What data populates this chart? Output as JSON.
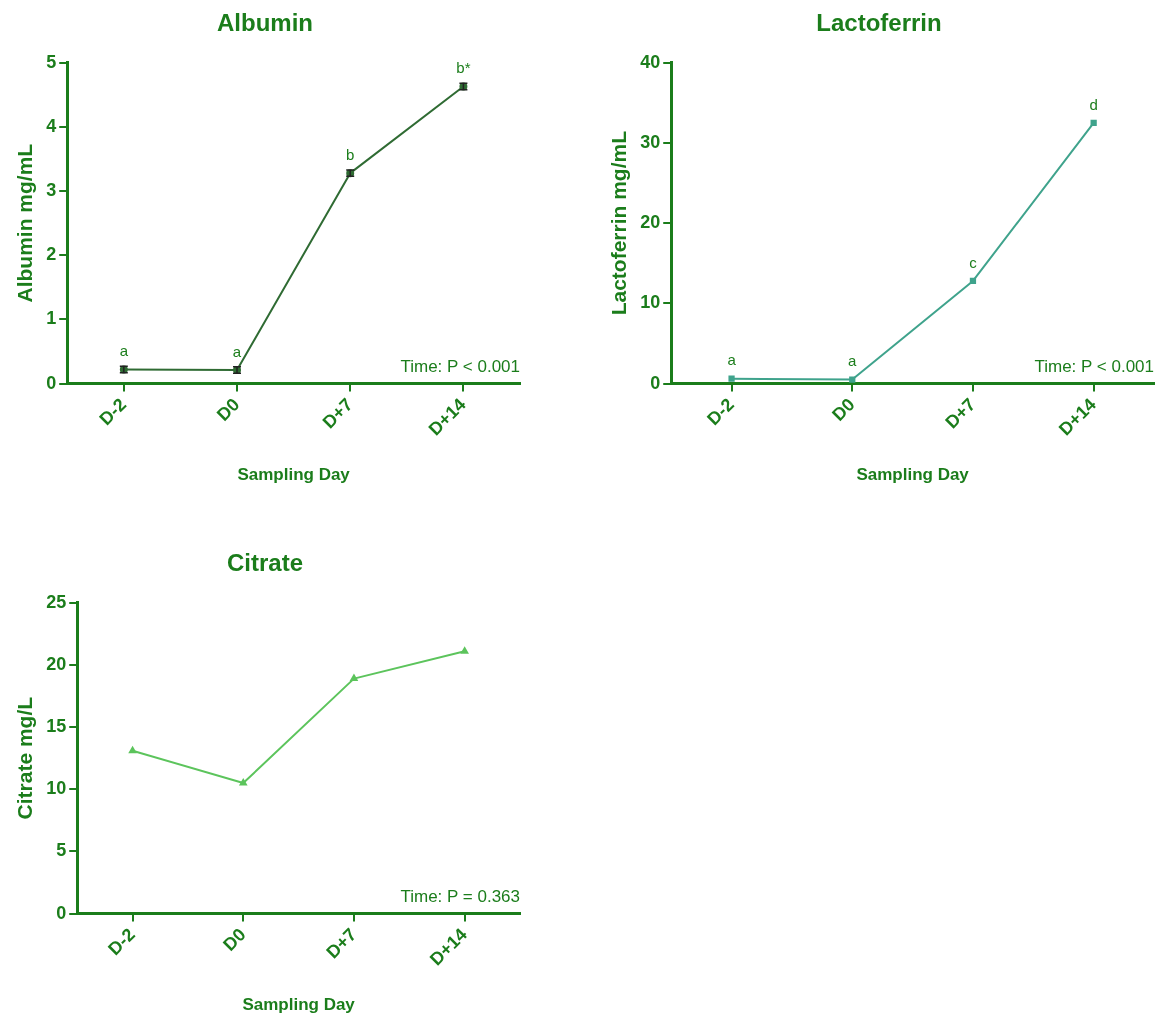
{
  "chart_data": [
    {
      "type": "line",
      "title": "Albumin",
      "xlabel": "Sampling Day",
      "ylabel": "Albumin mg/mL",
      "categories": [
        "D-2",
        "D0",
        "D+7",
        "D+14"
      ],
      "ylim": [
        0,
        5
      ],
      "yticks": [
        0,
        1,
        2,
        3,
        4,
        5
      ],
      "grid": false,
      "legend": false,
      "marker": "circle",
      "series": [
        {
          "color": "#2f6b33",
          "values": [
            0.22,
            0.21,
            3.28,
            4.63
          ],
          "errors": [
            0.05,
            0.05,
            0.05,
            0.05
          ]
        }
      ],
      "annotations": [
        {
          "text": "a",
          "x": "D-2",
          "y": 0.22
        },
        {
          "text": "a",
          "x": "D0",
          "y": 0.21
        },
        {
          "text": "b",
          "x": "D+7",
          "y": 3.28
        },
        {
          "text": "b*",
          "x": "D+14",
          "y": 4.63
        },
        "Time: P < 0.001"
      ]
    },
    {
      "type": "line",
      "title": "Lactoferrin",
      "xlabel": "Sampling Day",
      "ylabel": "Lactoferrin mg/mL",
      "categories": [
        "D-2",
        "D0",
        "D+7",
        "D+14"
      ],
      "ylim": [
        0,
        40
      ],
      "yticks": [
        0,
        10,
        20,
        30,
        40
      ],
      "grid": false,
      "legend": false,
      "marker": "square",
      "series": [
        {
          "color": "#3fa38c",
          "values": [
            0.6,
            0.5,
            12.8,
            32.5
          ]
        }
      ],
      "annotations": [
        {
          "text": "a",
          "x": "D-2",
          "y": 0.6
        },
        {
          "text": "a",
          "x": "D0",
          "y": 0.5
        },
        {
          "text": "c",
          "x": "D+7",
          "y": 12.8
        },
        {
          "text": "d",
          "x": "D+14",
          "y": 32.5
        },
        "Time: P < 0.001"
      ]
    },
    {
      "type": "line",
      "title": "Citrate",
      "xlabel": "Sampling Day",
      "ylabel": "Citrate mg/L",
      "categories": [
        "D-2",
        "D0",
        "D+7",
        "D+14"
      ],
      "ylim": [
        0,
        25
      ],
      "yticks": [
        0,
        5,
        10,
        15,
        20,
        25
      ],
      "grid": false,
      "legend": false,
      "marker": "triangle",
      "series": [
        {
          "color": "#5cc45c",
          "values": [
            13.1,
            10.5,
            18.9,
            21.1
          ]
        }
      ],
      "annotations": [
        "Time: P = 0.363"
      ]
    }
  ]
}
